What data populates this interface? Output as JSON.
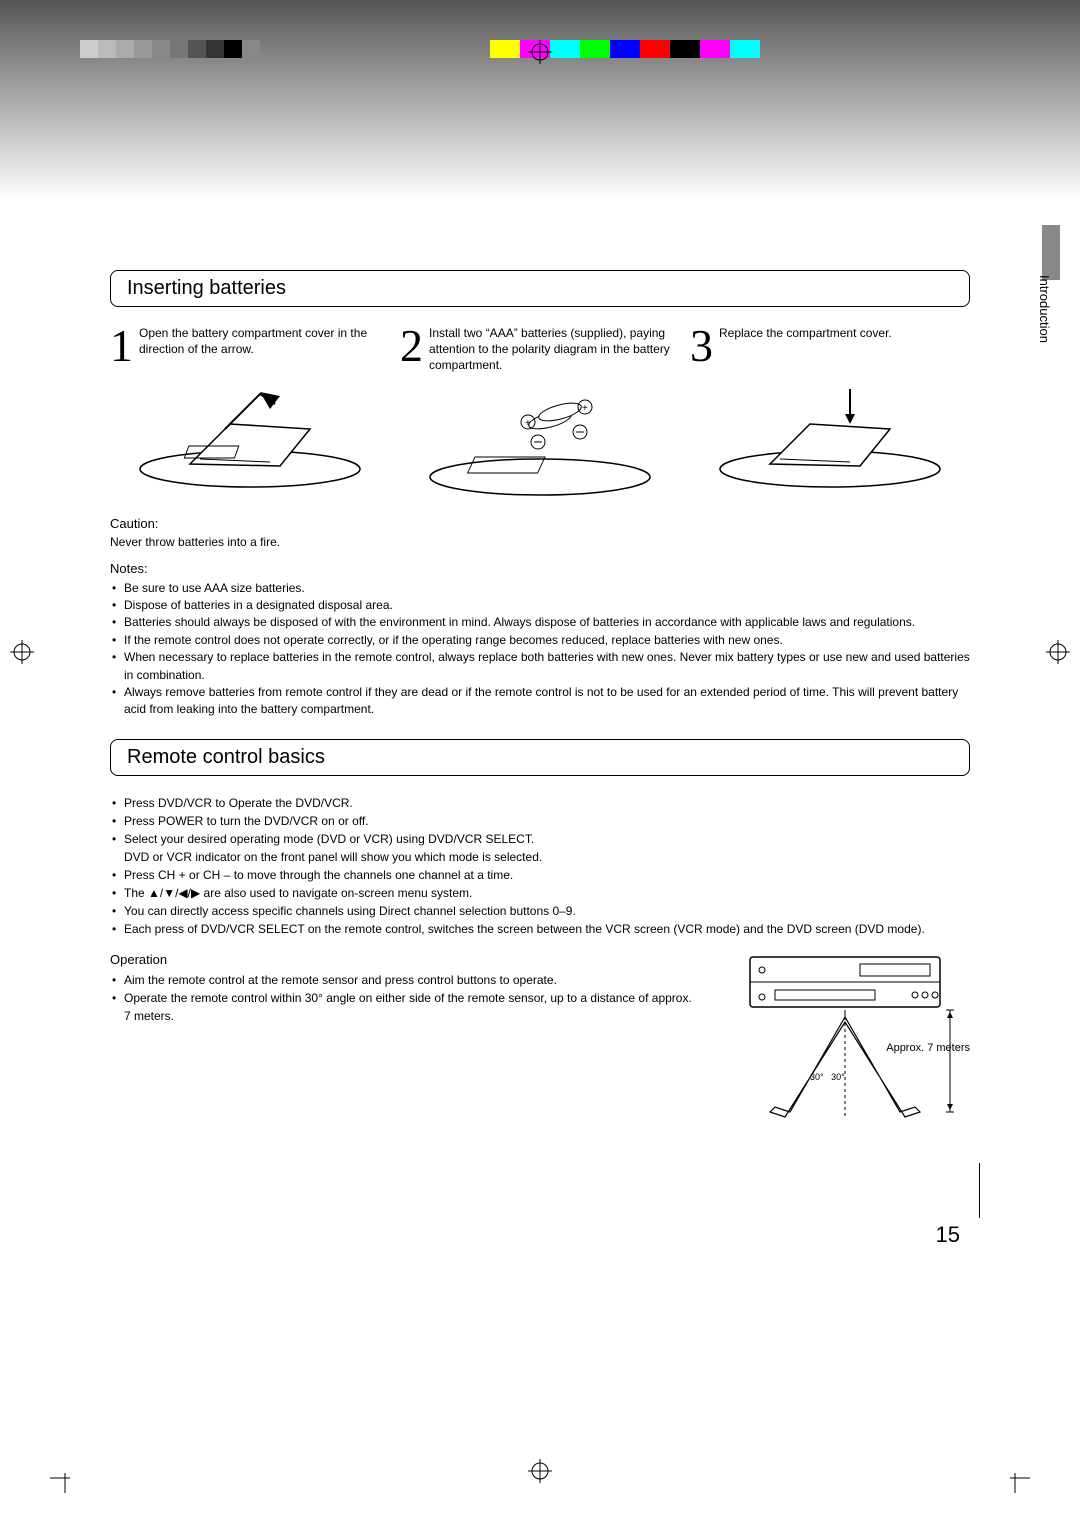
{
  "meta": {
    "page_number": "15",
    "side_tab": "Introduction"
  },
  "colors": {
    "gray_swatches": [
      "#cccccc",
      "#bbbbbb",
      "#aaaaaa",
      "#999999",
      "#888888",
      "#777777",
      "#555555",
      "#333333",
      "#000000",
      "#888888"
    ],
    "color_swatches": [
      "#ffff00",
      "#ff00ff",
      "#00ffff",
      "#00ff00",
      "#0000ff",
      "#ff0000",
      "#000000",
      "#ff00ff",
      "#00ffff"
    ],
    "tab_gray": "#888888",
    "text": "#000000",
    "background": "#ffffff"
  },
  "section1": {
    "title": "Inserting batteries",
    "steps": [
      {
        "num": "1",
        "text": "Open the battery compartment cover in the direction of the arrow."
      },
      {
        "num": "2",
        "text": "Install two “AAA” batteries (supplied), paying attention to the polarity diagram in the battery compartment."
      },
      {
        "num": "3",
        "text": "Replace the compartment cover."
      }
    ],
    "caution_label": "Caution:",
    "caution_text": "Never throw batteries into a fire.",
    "notes_label": "Notes:",
    "notes": [
      "Be sure to use AAA size batteries.",
      "Dispose of batteries in a designated disposal area.",
      "Batteries should always be disposed of with the environment in mind. Always dispose of batteries in accordance with applicable laws and regulations.",
      "If the remote control does not operate correctly, or if the operating range becomes reduced, replace batteries with new ones.",
      "When necessary to replace batteries in the remote control, always replace both batteries with new ones. Never mix battery types or use new and used batteries in combination.",
      "Always remove batteries from remote control if they are dead or if the remote control is not to be used for an extended period of time. This will prevent battery acid from leaking into the battery compartment."
    ]
  },
  "section2": {
    "title": "Remote control basics",
    "bullets": [
      "Press DVD/VCR to Operate the DVD/VCR.",
      "Press POWER to turn the DVD/VCR on or off.",
      "Select your desired operating mode (DVD or VCR) using DVD/VCR SELECT.\nDVD or VCR indicator on the front panel will show you which mode is selected.",
      "Press CH + or CH – to move through the channels one channel at a time.",
      "The ▲/▼/◀/▶ are also used to navigate on-screen menu system.",
      "You can directly access specific channels using Direct channel selection buttons 0–9.",
      "Each press of DVD/VCR SELECT on the remote control, switches the screen between the VCR screen (VCR mode) and the DVD screen (DVD mode)."
    ],
    "operation_label": "Operation",
    "operation_bullets": [
      "Aim the remote control at the remote sensor and press control buttons to operate.",
      "Operate the remote control within 30° angle on either side of the remote sensor, up to a distance of approx. 7 meters."
    ],
    "diagram": {
      "distance_label": "Approx. 7 meters",
      "angle_left": "30°",
      "angle_right": "30°"
    }
  }
}
